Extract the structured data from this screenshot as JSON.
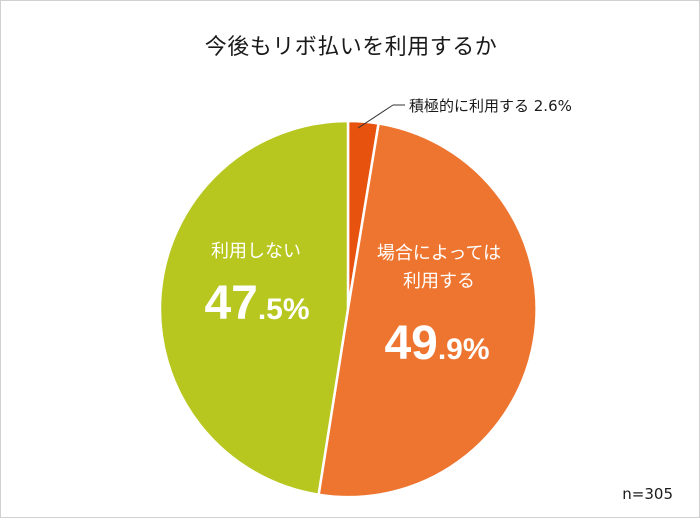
{
  "chart_data": {
    "type": "pie",
    "title": "今後もリボ払いを利用するか",
    "slices": [
      {
        "name": "積極的に利用する",
        "value": 2.6,
        "color": "#e8520f"
      },
      {
        "name": "場合によっては利用する",
        "value": 49.9,
        "color": "#ee7530"
      },
      {
        "name": "利用しない",
        "value": 47.5,
        "color": "#b7c71f"
      }
    ],
    "value_labels": {
      "s0": "積極的に利用する 2.6%",
      "s1_line1": "場合によっては",
      "s1_line2": "利用する",
      "s1_big": "49",
      "s1_small": ".9%",
      "s2_line1": "利用しない",
      "s2_big": "47",
      "s2_small": ".5%"
    },
    "sample_note": "n=305"
  }
}
